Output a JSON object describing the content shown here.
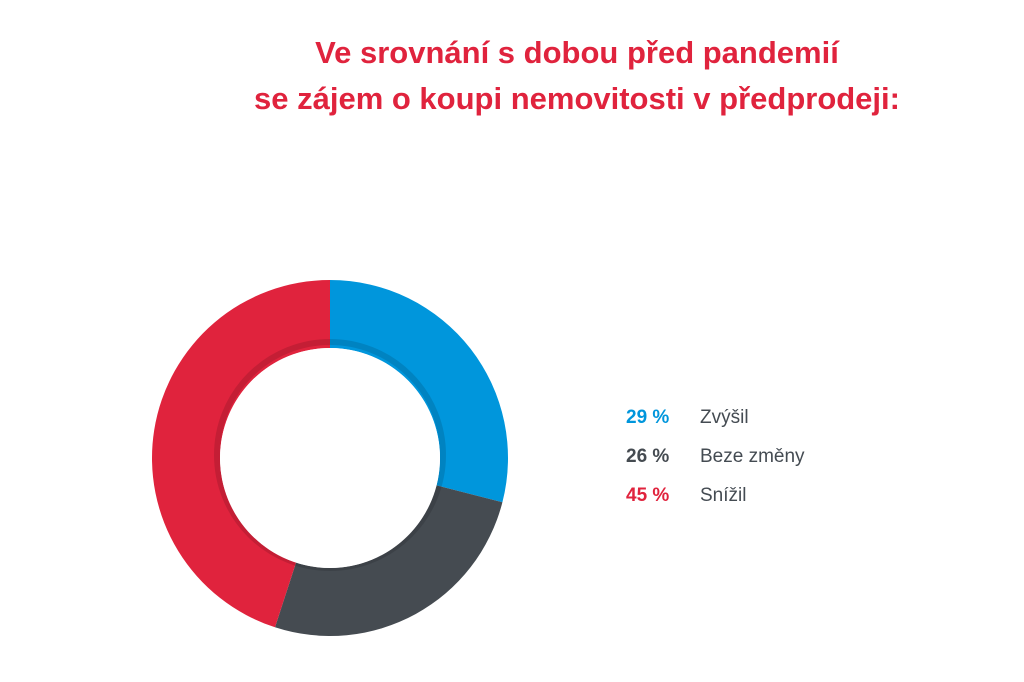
{
  "chart_data": {
    "type": "pie",
    "title_lines": [
      "Ve srovnání s dobou před pandemií",
      "se zájem o koupi nemovitosti v předprodeji:"
    ],
    "title": "Ve srovnání s dobou před pandemií se zájem o koupi nemovitosti v předprodeji:",
    "donut": true,
    "slices": [
      {
        "label": "Zvýšil",
        "value": 29,
        "value_label": "29 %",
        "color": "#0096dc"
      },
      {
        "label": "Beze změny",
        "value": 26,
        "value_label": "26 %",
        "color": "#454b51"
      },
      {
        "label": "Snížil",
        "value": 45,
        "value_label": "45 %",
        "color": "#e0233d"
      }
    ],
    "legend_position": "right"
  }
}
